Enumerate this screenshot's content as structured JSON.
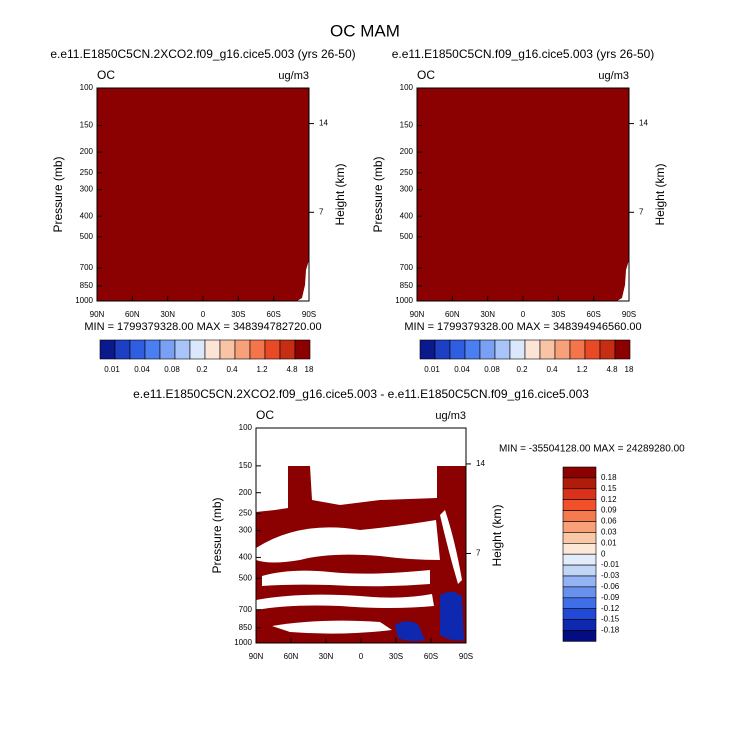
{
  "title": "OC MAM",
  "panels": [
    {
      "title": "e.e11.E1850C5CN.2XCO2.f09_g16.cice5.003 (yrs 26-50)",
      "left_label": "OC",
      "right_label": "ug/m3",
      "y_label": "Pressure (mb)",
      "y2_label": "Height (km)",
      "yticks": [
        100,
        150,
        200,
        250,
        300,
        400,
        500,
        700,
        850,
        1000
      ],
      "y2ticks": [
        14,
        7
      ],
      "xticks": [
        "90N",
        "60N",
        "30N",
        "0",
        "30S",
        "60S",
        "90S"
      ],
      "stats": "MIN = 1799379328.00  MAX = 348394782720.00"
    },
    {
      "title": "e.e11.E1850C5CN.f09_g16.cice5.003 (yrs 26-50)",
      "left_label": "OC",
      "right_label": "ug/m3",
      "y_label": "Pressure (mb)",
      "y2_label": "Height (km)",
      "yticks": [
        100,
        150,
        200,
        250,
        300,
        400,
        500,
        700,
        850,
        1000
      ],
      "y2ticks": [
        14,
        7
      ],
      "xticks": [
        "90N",
        "60N",
        "30N",
        "0",
        "30S",
        "60S",
        "90S"
      ],
      "stats": "MIN = 1799379328.00  MAX = 348394946560.00"
    },
    {
      "title": "e.e11.E1850C5CN.2XCO2.f09_g16.cice5.003 - e.e11.E1850C5CN.f09_g16.cice5.003",
      "left_label": "OC",
      "right_label": "ug/m3",
      "y_label": "Pressure (mb)",
      "y2_label": "Height (km)",
      "yticks": [
        100,
        150,
        200,
        250,
        300,
        400,
        500,
        700,
        850,
        1000
      ],
      "y2ticks": [
        14,
        7
      ],
      "xticks": [
        "90N",
        "60N",
        "30N",
        "0",
        "30S",
        "60S",
        "90S"
      ],
      "stats": "MIN = -35504128.00  MAX = 24289280.00"
    }
  ],
  "colorbars": [
    {
      "labels": [
        "0.01",
        "0.04",
        "0.08",
        "0.2",
        "0.4",
        "1.2",
        "4.8",
        "18"
      ],
      "colors": [
        "#0a1a8c",
        "#1c3fc4",
        "#2f5fe0",
        "#4b7ef0",
        "#7aa0f5",
        "#a9c4f8",
        "#dbe7fb",
        "#fbe3d6",
        "#f9c3a6",
        "#f7a079",
        "#f4744b",
        "#e94a25",
        "#c62d14",
        "#8b0000"
      ]
    },
    {
      "labels": [
        "0.01",
        "0.04",
        "0.08",
        "0.2",
        "0.4",
        "1.2",
        "4.8",
        "18"
      ],
      "colors": [
        "#0a1a8c",
        "#1c3fc4",
        "#2f5fe0",
        "#4b7ef0",
        "#7aa0f5",
        "#a9c4f8",
        "#dbe7fb",
        "#fbe3d6",
        "#f9c3a6",
        "#f7a079",
        "#f4744b",
        "#e94a25",
        "#c62d14",
        "#8b0000"
      ]
    },
    {
      "labels": [
        "0.18",
        "0.15",
        "0.12",
        "0.09",
        "0.06",
        "0.03",
        "0.01",
        "0",
        "-0.01",
        "-0.03",
        "-0.06",
        "-0.09",
        "-0.12",
        "-0.15",
        "-0.18"
      ],
      "colors": [
        "#8b0000",
        "#b01c0a",
        "#d8331a",
        "#f0502a",
        "#f57a4e",
        "#f8a178",
        "#fbc8a6",
        "#fde8d8",
        "#e3ecfb",
        "#c2d6f8",
        "#94b3f4",
        "#6890ee",
        "#3f6ee6",
        "#2148d6",
        "#0f28b0",
        "#040c82"
      ]
    }
  ]
}
